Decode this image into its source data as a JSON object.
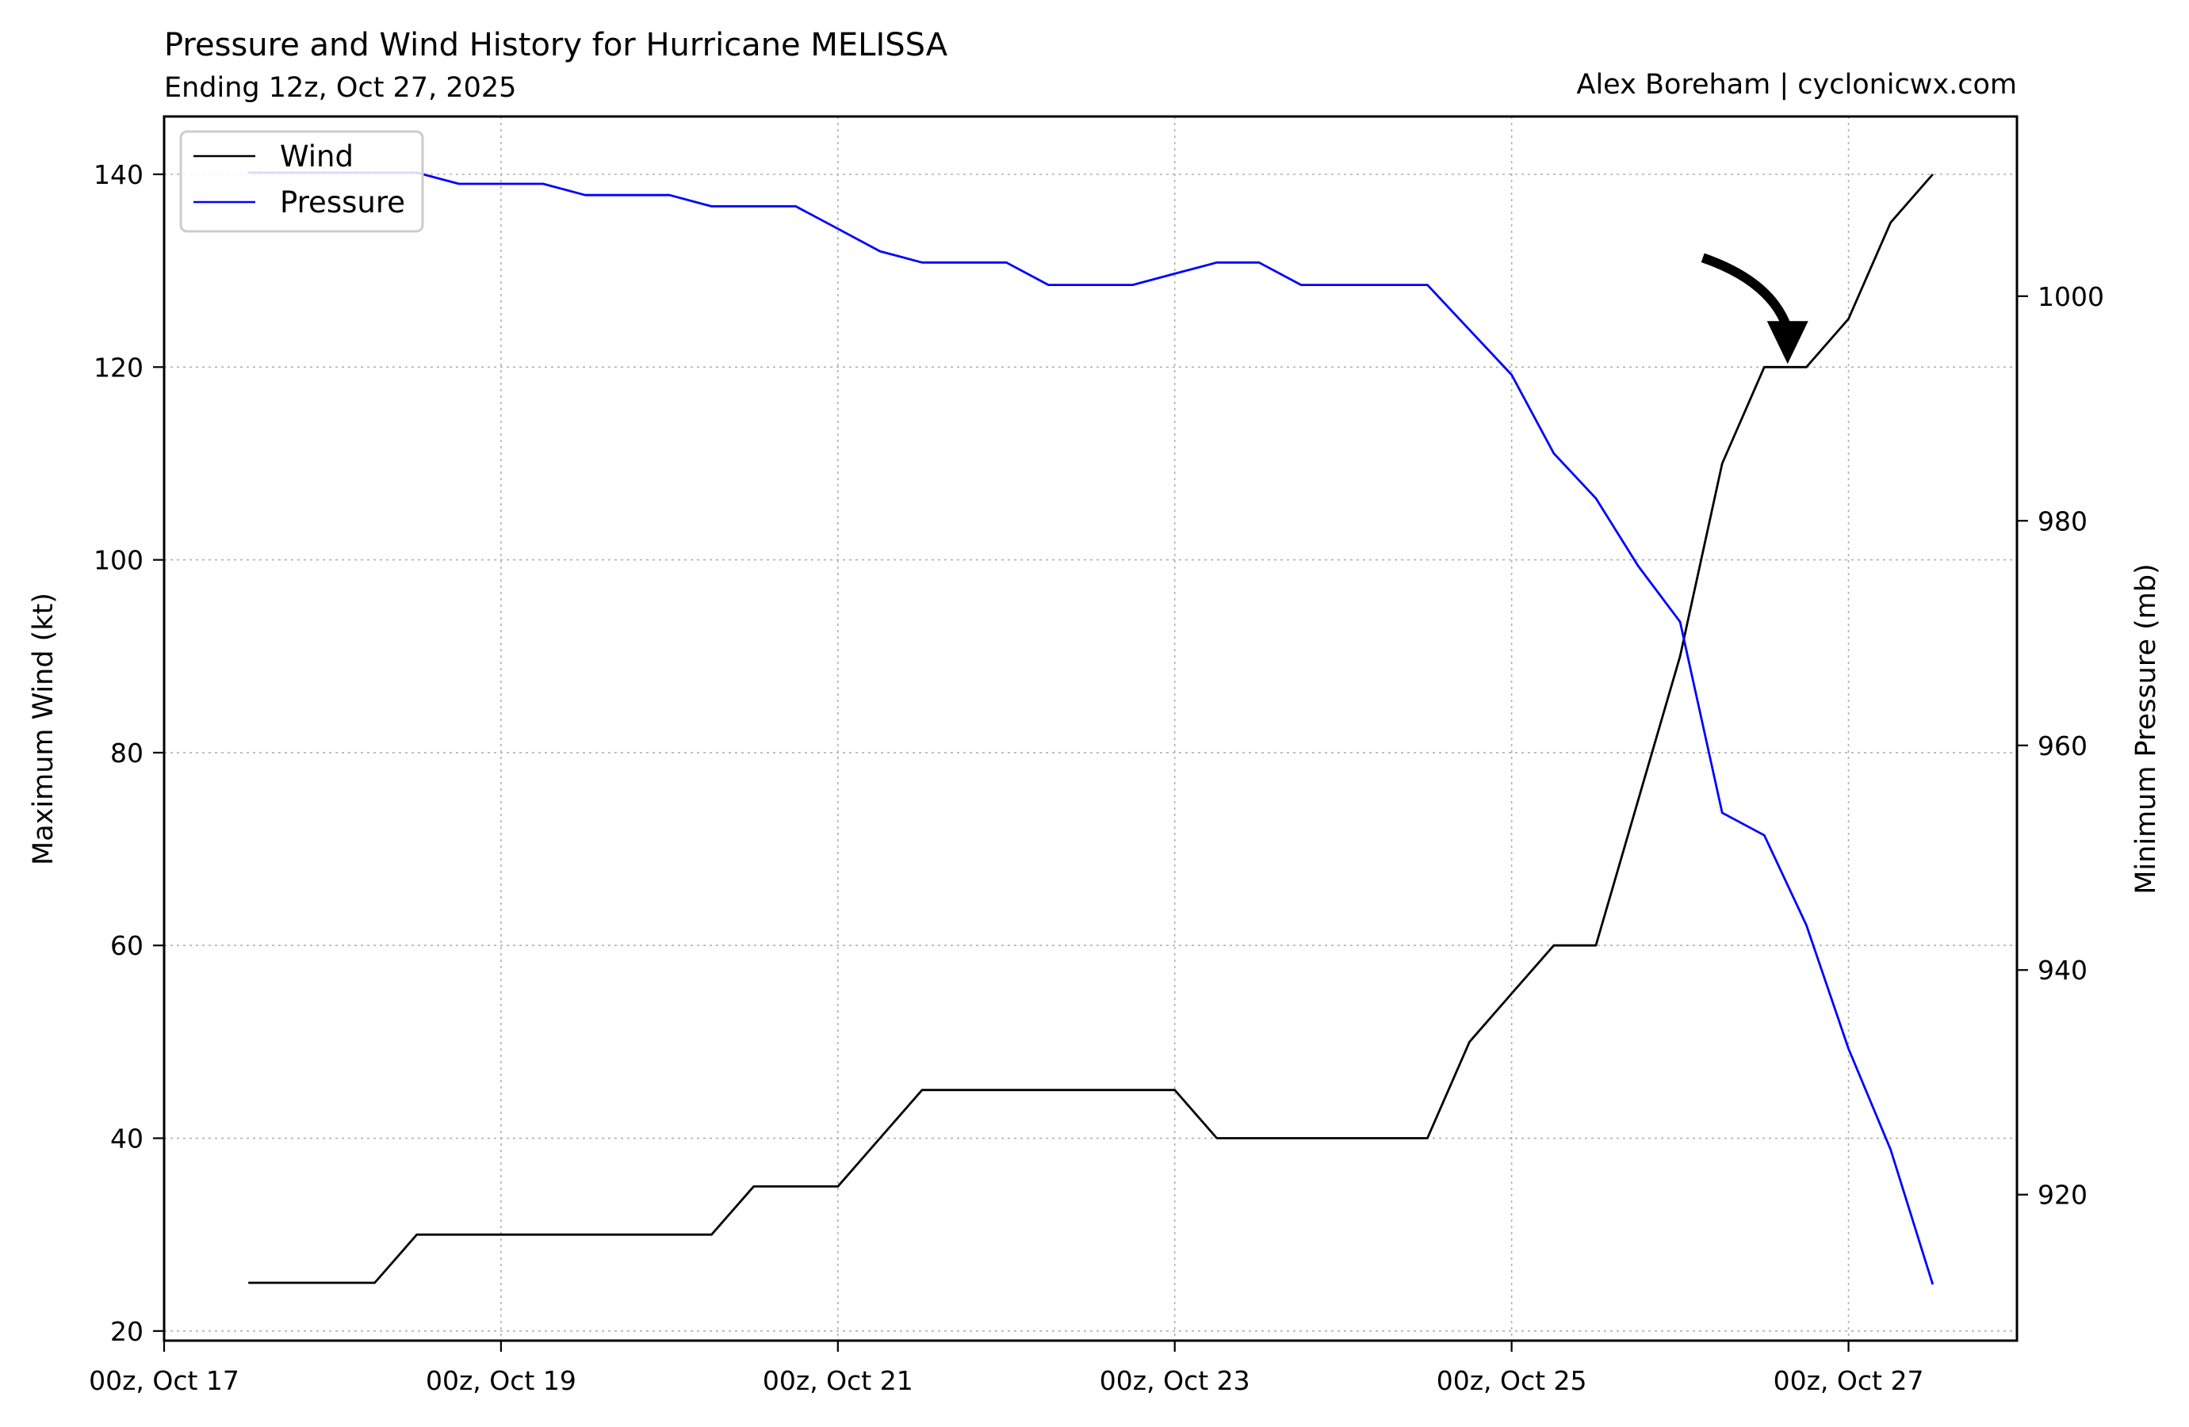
{
  "chart_data": {
    "type": "line",
    "title": "Pressure and Wind History for Hurricane MELISSA",
    "subtitle": "Ending 12z, Oct 27, 2025",
    "credit": "Alex Boreham | cyclonicwx.com",
    "ylabel": "Maximum Wind (kt)",
    "y2label": "Minimum Pressure (mb)",
    "x_unit": "hours",
    "xlim": [
      0,
      264
    ],
    "ylim": [
      19,
      146
    ],
    "y2lim": [
      907,
      1016
    ],
    "x_ticks": [
      {
        "value": 0,
        "label": "00z, Oct 17"
      },
      {
        "value": 48,
        "label": "00z, Oct 19"
      },
      {
        "value": 96,
        "label": "00z, Oct 21"
      },
      {
        "value": 144,
        "label": "00z, Oct 23"
      },
      {
        "value": 192,
        "label": "00z, Oct 25"
      },
      {
        "value": 240,
        "label": "00z, Oct 27"
      }
    ],
    "y_ticks": [
      20,
      40,
      60,
      80,
      100,
      120,
      140
    ],
    "y2_ticks": [
      920,
      940,
      960,
      980,
      1000
    ],
    "grid": true,
    "legend": "top-left",
    "x": [
      12,
      18,
      24,
      30,
      36,
      42,
      48,
      54,
      60,
      66,
      72,
      78,
      84,
      90,
      96,
      102,
      108,
      114,
      120,
      126,
      132,
      138,
      144,
      150,
      156,
      162,
      168,
      174,
      180,
      186,
      192,
      198,
      204,
      210,
      216,
      222,
      228,
      234,
      240,
      246,
      252
    ],
    "series": [
      {
        "name": "Wind",
        "axis": "left",
        "color": "#000000",
        "values": [
          25,
          25,
          25,
          25,
          30,
          30,
          30,
          30,
          30,
          30,
          30,
          30,
          35,
          35,
          35,
          40,
          45,
          45,
          45,
          45,
          45,
          45,
          45,
          40,
          40,
          40,
          40,
          40,
          40,
          50,
          55,
          60,
          60,
          75,
          90,
          110,
          120,
          120,
          125,
          135,
          140
        ]
      },
      {
        "name": "Pressure",
        "axis": "right",
        "color": "#0000ff",
        "values": [
          1011,
          1011,
          1011,
          1011,
          1011,
          1010,
          1010,
          1010,
          1009,
          1009,
          1009,
          1008,
          1008,
          1008,
          1006,
          1004,
          1003,
          1003,
          1003,
          1001,
          1001,
          1001,
          1002,
          1003,
          1003,
          1001,
          1001,
          1001,
          1001,
          997,
          993,
          986,
          982,
          976,
          971,
          954,
          952,
          944,
          933,
          924,
          912
        ]
      }
    ],
    "annotation": {
      "type": "arrow",
      "target": {
        "x": 232,
        "y": 120
      }
    }
  }
}
